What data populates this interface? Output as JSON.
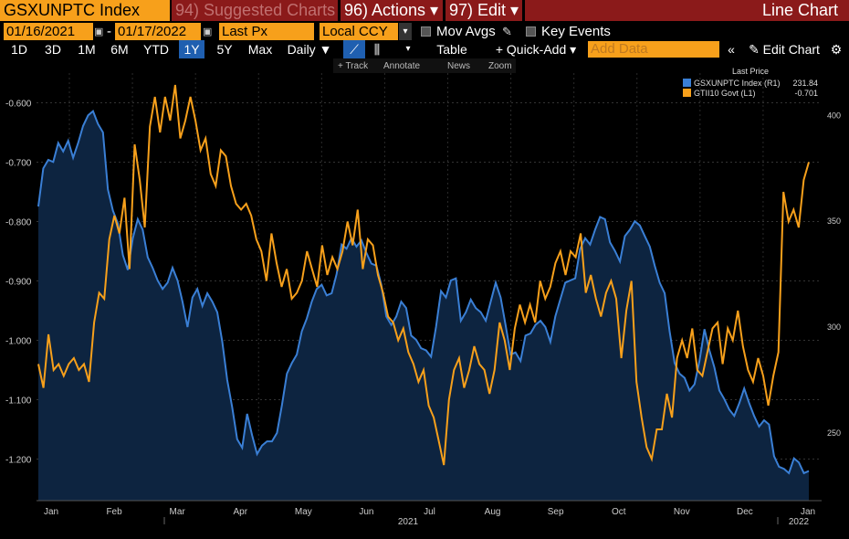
{
  "header": {
    "ticker": "GSXUNPTC Index",
    "menu_suggested": "94) Suggested Charts",
    "menu_actions": "96) Actions ▾",
    "menu_edit": "97) Edit ▾",
    "chart_kind": "Line Chart"
  },
  "controls": {
    "start_date": "01/16/2021",
    "end_date": "01/17/2022",
    "separator": "-",
    "field": "Last Px",
    "currency": "Local CCY",
    "mov_avgs": "Mov Avgs",
    "key_events": "Key Events"
  },
  "periods": [
    "1D",
    "3D",
    "1M",
    "6M",
    "YTD",
    "1Y",
    "5Y",
    "Max"
  ],
  "selected_period": "1Y",
  "frequency": "Daily ▼",
  "toolbar": {
    "table": "Table",
    "quick_add": "+ Quick-Add ▾",
    "add_data_placeholder": "Add Data",
    "edit_chart": "✎ Edit Chart",
    "track": "+ Track",
    "annotate": "Annotate",
    "news": "News",
    "zoom": "Zoom"
  },
  "colors": {
    "accent_orange": "#f7a01b",
    "menu_red": "#8b1a1a",
    "series_blue": "#3a7fd5",
    "series_orange": "#f7a01b",
    "area_fill": "#0d2440"
  },
  "chart_data": {
    "type": "line",
    "legend_title": "Last Price",
    "legend_position": "top-right",
    "x_tick_labels": [
      "Jan",
      "Feb",
      "Mar",
      "Apr",
      "May",
      "Jun",
      "Jul",
      "Aug",
      "Sep",
      "Oct",
      "Nov",
      "Dec",
      "Jan"
    ],
    "x_year_labels": [
      "2021",
      "2022"
    ],
    "left_axis": {
      "ticks": [
        "-0.600",
        "-0.700",
        "-0.800",
        "-0.900",
        "-1.000",
        "-1.100",
        "-1.200"
      ],
      "range": [
        -1.27,
        -0.55
      ]
    },
    "right_axis": {
      "ticks": [
        "400",
        "350",
        "300",
        "250"
      ],
      "range": [
        218,
        420
      ]
    },
    "series": [
      {
        "name": "GSXUNPTC Index (R1)",
        "last": "231.84",
        "axis": "right",
        "style": "area",
        "values": [
          357,
          375,
          379,
          378,
          387,
          383,
          388,
          380,
          387,
          395,
          400,
          402,
          396,
          392,
          365,
          355,
          349,
          334,
          327,
          342,
          351,
          346,
          333,
          328,
          322,
          318,
          321,
          328,
          322,
          312,
          300,
          314,
          318,
          310,
          316,
          312,
          307,
          293,
          275,
          262,
          247,
          243,
          259,
          249,
          240,
          244,
          246,
          246,
          250,
          263,
          278,
          283,
          287,
          298,
          304,
          312,
          318,
          320,
          315,
          316,
          325,
          339,
          337,
          342,
          338,
          341,
          335,
          330,
          329,
          320,
          305,
          301,
          305,
          312,
          309,
          296,
          294,
          290,
          289,
          286,
          300,
          317,
          314,
          322,
          323,
          303,
          307,
          313,
          309,
          307,
          303,
          312,
          321,
          314,
          301,
          287,
          288,
          284,
          296,
          297,
          301,
          303,
          300,
          293,
          305,
          313,
          321,
          322,
          323,
          337,
          342,
          339,
          346,
          352,
          351,
          340,
          336,
          331,
          343,
          346,
          350,
          348,
          343,
          338,
          329,
          321,
          316,
          298,
          283,
          278,
          276,
          270,
          273,
          284,
          299,
          289,
          281,
          270,
          266,
          261,
          258,
          264,
          271,
          264,
          258,
          253,
          256,
          254,
          239,
          234,
          233,
          231,
          238,
          236,
          231,
          232
        ]
      },
      {
        "name": "GTII10 Govt (L1)",
        "last": "-0.701",
        "axis": "left",
        "style": "line",
        "values": [
          -1.04,
          -1.08,
          -0.99,
          -1.05,
          -1.04,
          -1.06,
          -1.04,
          -1.03,
          -1.05,
          -1.04,
          -1.07,
          -0.97,
          -0.92,
          -0.93,
          -0.83,
          -0.79,
          -0.82,
          -0.76,
          -0.88,
          -0.67,
          -0.73,
          -0.81,
          -0.64,
          -0.59,
          -0.65,
          -0.59,
          -0.63,
          -0.57,
          -0.66,
          -0.63,
          -0.59,
          -0.63,
          -0.68,
          -0.66,
          -0.72,
          -0.74,
          -0.68,
          -0.69,
          -0.74,
          -0.77,
          -0.78,
          -0.77,
          -0.79,
          -0.83,
          -0.85,
          -0.9,
          -0.82,
          -0.87,
          -0.91,
          -0.88,
          -0.93,
          -0.92,
          -0.9,
          -0.85,
          -0.88,
          -0.91,
          -0.84,
          -0.89,
          -0.86,
          -0.88,
          -0.85,
          -0.8,
          -0.84,
          -0.78,
          -0.88,
          -0.83,
          -0.84,
          -0.89,
          -0.92,
          -0.96,
          -0.97,
          -1.0,
          -0.98,
          -1.02,
          -1.04,
          -1.07,
          -1.05,
          -1.11,
          -1.13,
          -1.17,
          -1.21,
          -1.1,
          -1.05,
          -1.03,
          -1.08,
          -1.05,
          -1.01,
          -1.04,
          -1.05,
          -1.09,
          -1.05,
          -0.97,
          -1.0,
          -1.05,
          -0.98,
          -0.94,
          -0.97,
          -0.94,
          -0.97,
          -0.9,
          -0.93,
          -0.91,
          -0.87,
          -0.85,
          -0.89,
          -0.85,
          -0.86,
          -0.82,
          -0.92,
          -0.89,
          -0.93,
          -0.96,
          -0.92,
          -0.9,
          -0.93,
          -1.03,
          -0.95,
          -0.9,
          -1.07,
          -1.13,
          -1.18,
          -1.2,
          -1.15,
          -1.15,
          -1.09,
          -1.13,
          -1.03,
          -1.0,
          -1.03,
          -0.98,
          -1.05,
          -1.06,
          -1.02,
          -0.98,
          -0.97,
          -1.04,
          -0.98,
          -1.0,
          -0.95,
          -1.01,
          -1.05,
          -1.07,
          -1.03,
          -1.06,
          -1.11,
          -1.06,
          -1.02,
          -0.75,
          -0.8,
          -0.78,
          -0.81,
          -0.73,
          -0.7
        ]
      }
    ]
  }
}
